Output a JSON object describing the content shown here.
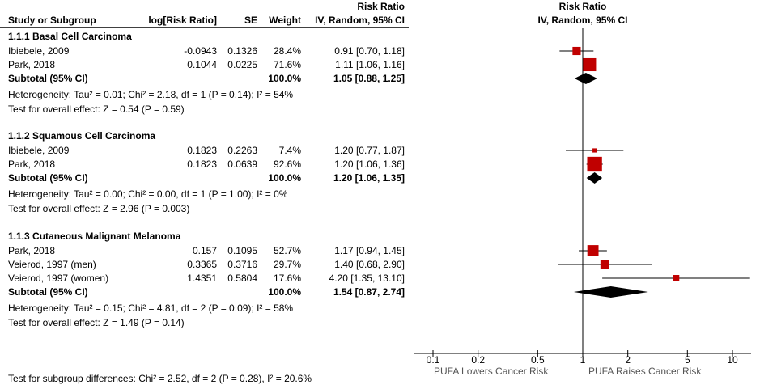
{
  "chart_data": {
    "type": "forest",
    "header": {
      "study": "Study or Subgroup",
      "log": "log[Risk Ratio]",
      "se": "SE",
      "weight": "Weight",
      "rr_top": "Risk Ratio",
      "rr": "IV, Random, 95% CI",
      "plot_top": "Risk Ratio",
      "plot": "IV, Random, 95% CI"
    },
    "x_scale": "log",
    "xlim": [
      0.1,
      13.1
    ],
    "ticks": [
      "0.1",
      "0.2",
      "0.5",
      "1",
      "2",
      "5",
      "10"
    ],
    "xlabel_left": "PUFA Lowers Cancer Risk",
    "xlabel_right": "PUFA Raises Cancer Risk",
    "marker_color": "#c00000",
    "groups": [
      {
        "title": "1.1.1 Basal Cell Carcinoma",
        "studies": [
          {
            "name": "Ibiebele, 2009",
            "log": "-0.0943",
            "se": "0.1326",
            "weight": "28.4%",
            "ci": "0.91 [0.70, 1.18]",
            "rr": 0.91,
            "lo": 0.7,
            "hi": 1.18,
            "w": 28.4
          },
          {
            "name": "Park, 2018",
            "log": "0.1044",
            "se": "0.0225",
            "weight": "71.6%",
            "ci": "1.11 [1.06, 1.16]",
            "rr": 1.11,
            "lo": 1.06,
            "hi": 1.16,
            "w": 71.6
          }
        ],
        "subtotal": {
          "label": "Subtotal (95% CI)",
          "weight": "100.0%",
          "ci": "1.05 [0.88, 1.25]",
          "rr": 1.05,
          "lo": 0.88,
          "hi": 1.25
        },
        "het": "Heterogeneity: Tau² = 0.01; Chi² = 2.18, df = 1 (P = 0.14); I² = 54%",
        "test": "Test for overall effect: Z = 0.54 (P = 0.59)"
      },
      {
        "title": "1.1.2 Squamous Cell Carcinoma",
        "studies": [
          {
            "name": "Ibiebele, 2009",
            "log": "0.1823",
            "se": "0.2263",
            "weight": "7.4%",
            "ci": "1.20 [0.77, 1.87]",
            "rr": 1.2,
            "lo": 0.77,
            "hi": 1.87,
            "w": 7.4
          },
          {
            "name": "Park, 2018",
            "log": "0.1823",
            "se": "0.0639",
            "weight": "92.6%",
            "ci": "1.20 [1.06, 1.36]",
            "rr": 1.2,
            "lo": 1.06,
            "hi": 1.36,
            "w": 92.6
          }
        ],
        "subtotal": {
          "label": "Subtotal (95% CI)",
          "weight": "100.0%",
          "ci": "1.20 [1.06, 1.35]",
          "rr": 1.2,
          "lo": 1.06,
          "hi": 1.35
        },
        "het": "Heterogeneity: Tau² = 0.00; Chi² = 0.00, df = 1 (P = 1.00); I² = 0%",
        "test": "Test for overall effect: Z = 2.96 (P = 0.003)"
      },
      {
        "title": "1.1.3 Cutaneous Malignant Melanoma",
        "studies": [
          {
            "name": "Park, 2018",
            "log": "0.157",
            "se": "0.1095",
            "weight": "52.7%",
            "ci": "1.17 [0.94, 1.45]",
            "rr": 1.17,
            "lo": 0.94,
            "hi": 1.45,
            "w": 52.7
          },
          {
            "name": "Veierod, 1997 (men)",
            "log": "0.3365",
            "se": "0.3716",
            "weight": "29.7%",
            "ci": "1.40 [0.68, 2.90]",
            "rr": 1.4,
            "lo": 0.68,
            "hi": 2.9,
            "w": 29.7
          },
          {
            "name": "Veierod, 1997 (women)",
            "log": "1.4351",
            "se": "0.5804",
            "weight": "17.6%",
            "ci": "4.20 [1.35, 13.10]",
            "rr": 4.2,
            "lo": 1.35,
            "hi": 13.1,
            "w": 17.6
          }
        ],
        "subtotal": {
          "label": "Subtotal (95% CI)",
          "weight": "100.0%",
          "ci": "1.54 [0.87, 2.74]",
          "rr": 1.54,
          "lo": 0.87,
          "hi": 2.74
        },
        "het": "Heterogeneity: Tau² = 0.15; Chi² = 4.81, df = 2 (P = 0.09); I² = 58%",
        "test": "Test for overall effect: Z = 1.49 (P = 0.14)"
      }
    ],
    "subgroup_test": "Test for subgroup differences: Chi² = 2.52, df = 2 (P = 0.28), I² = 20.6%"
  }
}
